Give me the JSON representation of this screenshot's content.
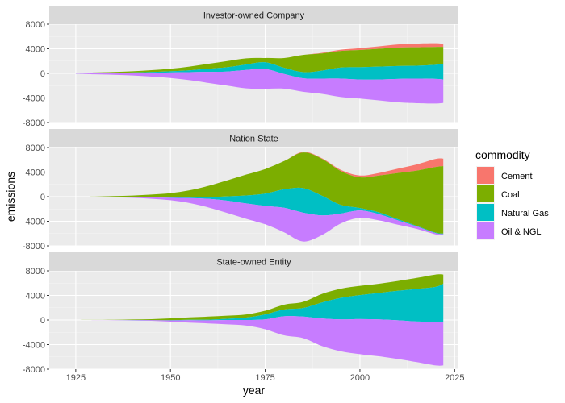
{
  "chart_data": {
    "type": "area",
    "subtype": "streamgraph",
    "xlabel": "year",
    "ylabel": "emissions",
    "xlim": [
      1918,
      2026
    ],
    "ylim": [
      -8000,
      8000
    ],
    "x_ticks": [
      1925,
      1950,
      1975,
      2000,
      2025
    ],
    "y_ticks": [
      -8000,
      -4000,
      0,
      4000,
      8000
    ],
    "legend": {
      "title": "commodity",
      "position": "right"
    },
    "series": [
      {
        "name": "Cement",
        "color": "#F8766D"
      },
      {
        "name": "Coal",
        "color": "#7CAE00"
      },
      {
        "name": "Natural Gas",
        "color": "#00BFC4"
      },
      {
        "name": "Oil & NGL",
        "color": "#C77CFF"
      }
    ],
    "years": [
      1925,
      1930,
      1935,
      1940,
      1945,
      1950,
      1955,
      1960,
      1965,
      1970,
      1975,
      1980,
      1985,
      1990,
      1995,
      2000,
      2005,
      2010,
      2015,
      2020,
      2022
    ],
    "facets": [
      {
        "title": "Investor-owned Company",
        "values": {
          "Cement": [
            0,
            0,
            0,
            0,
            0,
            0,
            0,
            0,
            0,
            0,
            0,
            0,
            0,
            100,
            200,
            300,
            400,
            500,
            600,
            600,
            500
          ],
          "Coal": [
            50,
            100,
            150,
            200,
            300,
            400,
            600,
            800,
            1000,
            1000,
            700,
            1600,
            2800,
            2800,
            2700,
            2800,
            2900,
            3000,
            3000,
            2900,
            2800
          ],
          "Natural Gas": [
            20,
            40,
            60,
            100,
            150,
            200,
            300,
            500,
            700,
            900,
            1100,
            1000,
            1000,
            1300,
            1800,
            2000,
            2100,
            2100,
            2100,
            2300,
            2500
          ],
          "Oil & NGL": [
            50,
            150,
            250,
            400,
            600,
            900,
            1300,
            1800,
            2300,
            3000,
            3200,
            2400,
            2200,
            2500,
            3000,
            3100,
            3400,
            3800,
            4000,
            4000,
            3800
          ]
        }
      },
      {
        "title": "Nation State",
        "values": {
          "Cement": [
            0,
            0,
            0,
            0,
            0,
            0,
            0,
            0,
            0,
            0,
            0,
            0,
            100,
            100,
            200,
            300,
            400,
            700,
            1000,
            1300,
            1200
          ],
          "Coal": [
            0,
            20,
            100,
            200,
            400,
            700,
            1100,
            1800,
            2600,
            3400,
            4000,
            4600,
            5800,
            6000,
            5500,
            5000,
            6000,
            7500,
            9000,
            10700,
            11000
          ],
          "Natural Gas": [
            0,
            0,
            10,
            20,
            30,
            50,
            150,
            300,
            700,
            1300,
            2000,
            3000,
            4000,
            3200,
            1400,
            400,
            300,
            200,
            100,
            80,
            80
          ],
          "Oil & NGL": [
            0,
            20,
            80,
            150,
            250,
            400,
            800,
            1400,
            2000,
            2500,
            3000,
            4000,
            4700,
            3200,
            1600,
            1200,
            1000,
            700,
            400,
            200,
            100
          ]
        }
      },
      {
        "title": "State-owned Entity",
        "values": {
          "Cement": [
            0,
            0,
            0,
            0,
            0,
            0,
            0,
            0,
            0,
            0,
            0,
            0,
            0,
            0,
            0,
            0,
            0,
            0,
            0,
            0,
            0
          ],
          "Coal": [
            0,
            10,
            20,
            80,
            150,
            300,
            400,
            500,
            500,
            500,
            600,
            800,
            1000,
            1400,
            1500,
            1500,
            1500,
            1600,
            1800,
            2000,
            1500
          ],
          "Natural Gas": [
            0,
            0,
            10,
            20,
            20,
            30,
            60,
            100,
            200,
            400,
            800,
            1100,
            1400,
            2600,
            3500,
            3900,
            4300,
            4800,
            5300,
            5700,
            6200
          ],
          "Oil & NGL": [
            0,
            10,
            20,
            50,
            100,
            200,
            400,
            500,
            700,
            900,
            1600,
            3100,
            3500,
            4500,
            5200,
            5700,
            6000,
            6300,
            6600,
            7100,
            7100
          ]
        }
      }
    ]
  }
}
